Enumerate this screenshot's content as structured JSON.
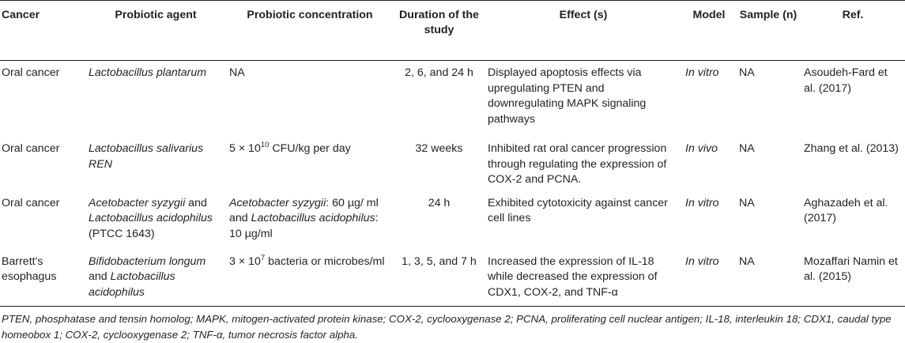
{
  "headers": {
    "cancer": "Cancer",
    "agent": "Probiotic agent",
    "concentration": "Probiotic concentration",
    "duration": "Duration of the study",
    "effect": "Effect (s)",
    "model": "Model",
    "sample": "Sample (n)",
    "ref": "Ref."
  },
  "rows": [
    {
      "cancer": "Oral cancer",
      "agent": "Lactobacillus plantarum",
      "concentration": "NA",
      "duration": "2, 6, and 24 h",
      "effect": "Displayed apoptosis effects via upregulating PTEN and downregulating MAPK signaling pathways",
      "model": "In vitro",
      "sample": "NA",
      "ref": "Asoudeh-Fard et al. (2017)"
    },
    {
      "cancer": "Oral cancer",
      "agent": "Lactobacillus salivarius REN",
      "concentration_pre": "5 × 10",
      "concentration_exp": "10",
      "concentration_post": " CFU/kg per day",
      "duration": "32 weeks",
      "effect": "Inhibited rat oral cancer progression through regulating the expression of COX-2 and PCNA.",
      "model": "In vivo",
      "sample": "NA",
      "ref": "Zhang et al. (2013)"
    },
    {
      "cancer": "Oral cancer",
      "agent_a": "Acetobacter syzygii",
      "agent_and": " and ",
      "agent_b": "Lactobacillus acidophilus",
      "agent_c": " (PTCC 1643)",
      "conc_a": "Acetobacter syzygii",
      "conc_a_val": ": 60 µg/ ml and ",
      "conc_b": "Lactobacillus acidophilus",
      "conc_b_val": ": 10 µg/ml",
      "duration": "24 h",
      "effect": "Exhibited cytotoxicity against cancer cell lines",
      "model": "In vitro",
      "sample": "NA",
      "ref": "Aghazadeh et al. (2017)"
    },
    {
      "cancer": "Barrett's esophagus",
      "agent_a": "Bifidobacterium longum",
      "agent_and": " and ",
      "agent_b": "Lactobacillus acidophilus",
      "concentration_pre": "3 × 10",
      "concentration_exp": "7",
      "concentration_post": " bacteria or microbes/ml",
      "duration": "1, 3, 5, and 7 h",
      "effect": "Increased the expression of IL-18 while decreased the expression of CDX1, COX-2, and TNF-α",
      "model": "In vitro",
      "sample": "NA",
      "ref": "Mozaffari Namin et al. (2015)"
    }
  ],
  "footnote": "PTEN, phosphatase and tensin homolog; MAPK, mitogen-activated protein kinase; COX-2, cyclooxygenase 2; PCNA, proliferating cell nuclear antigen; IL-18, interleukin 18; CDX1, caudal type homeobox 1; COX-2, cyclooxygenase 2; TNF-α, tumor necrosis factor alpha."
}
